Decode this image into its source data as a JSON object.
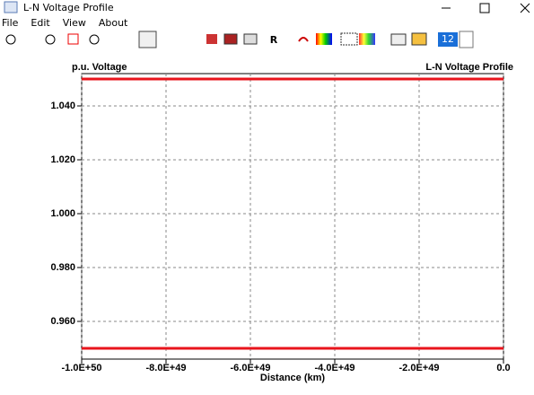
{
  "window": {
    "title": "L-N Voltage Profile",
    "menu": [
      "File",
      "Edit",
      "View",
      "About"
    ],
    "toolbar_text": "R",
    "font_size": "12"
  },
  "chart_data": {
    "type": "line",
    "title": "L-N Voltage Profile",
    "y_label": "p.u. Voltage",
    "x_label": "Distance (km)",
    "x": [
      -1e+50,
      0
    ],
    "series": [
      {
        "color": "#e8141c",
        "values": [
          1.05,
          1.05
        ]
      },
      {
        "color": "#e8141c",
        "values": [
          0.95,
          0.95
        ]
      }
    ],
    "xlim": [
      -1e+50,
      0
    ],
    "xticks": [
      {
        "value": -1e+50,
        "label": "-1.0E+50"
      },
      {
        "value": -8e+49,
        "label": "-8.0E+49"
      },
      {
        "value": -6e+49,
        "label": "-6.0E+49"
      },
      {
        "value": -4e+49,
        "label": "-4.0E+49"
      },
      {
        "value": -2e+49,
        "label": "-2.0E+49"
      },
      {
        "value": 0,
        "label": "0.0"
      }
    ],
    "ylim": [
      0.946,
      1.052
    ],
    "yticks": [
      {
        "value": 0.96,
        "label": "0.960"
      },
      {
        "value": 0.98,
        "label": "0.980"
      },
      {
        "value": 1,
        "label": "1.000"
      },
      {
        "value": 1.02,
        "label": "1.020"
      },
      {
        "value": 1.04,
        "label": "1.040"
      }
    ],
    "grid": true
  }
}
